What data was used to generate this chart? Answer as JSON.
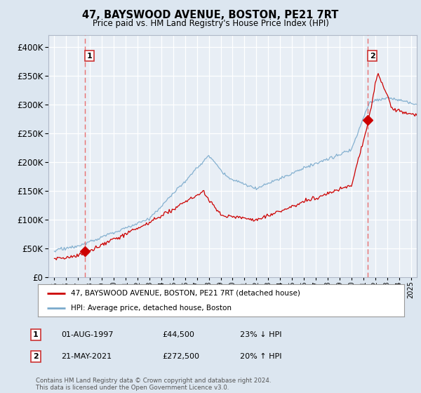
{
  "title": "47, BAYSWOOD AVENUE, BOSTON, PE21 7RT",
  "subtitle": "Price paid vs. HM Land Registry's House Price Index (HPI)",
  "legend_line1": "47, BAYSWOOD AVENUE, BOSTON, PE21 7RT (detached house)",
  "legend_line2": "HPI: Average price, detached house, Boston",
  "sale1_date": "01-AUG-1997",
  "sale1_price": "£44,500",
  "sale1_hpi": "23% ↓ HPI",
  "sale2_date": "21-MAY-2021",
  "sale2_price": "£272,500",
  "sale2_hpi": "20% ↑ HPI",
  "footnote": "Contains HM Land Registry data © Crown copyright and database right 2024.\nThis data is licensed under the Open Government Licence v3.0.",
  "ylim": [
    0,
    420000
  ],
  "xlim_start": 1994.5,
  "xlim_end": 2025.5,
  "sale1_year": 1997.583,
  "sale1_value": 44500,
  "sale2_year": 2021.38,
  "sale2_value": 272500,
  "red_color": "#cc0000",
  "blue_color": "#7aaacc",
  "bg_color": "#dce6f0",
  "plot_bg_color": "#e8eef5",
  "grid_color": "#ffffff",
  "dash_color": "#e87070"
}
